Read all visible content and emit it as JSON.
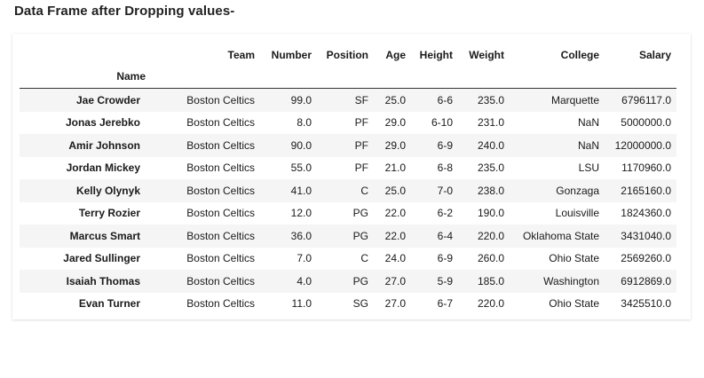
{
  "heading": "Data Frame after Dropping values-",
  "table": {
    "index_name": "Name",
    "columns": [
      "Team",
      "Number",
      "Position",
      "Age",
      "Height",
      "Weight",
      "College",
      "Salary"
    ],
    "rows": [
      {
        "name": "Jae Crowder",
        "team": "Boston Celtics",
        "number": "99.0",
        "position": "SF",
        "age": "25.0",
        "height": "6-6",
        "weight": "235.0",
        "college": "Marquette",
        "salary": "6796117.0"
      },
      {
        "name": "Jonas Jerebko",
        "team": "Boston Celtics",
        "number": "8.0",
        "position": "PF",
        "age": "29.0",
        "height": "6-10",
        "weight": "231.0",
        "college": "NaN",
        "salary": "5000000.0"
      },
      {
        "name": "Amir Johnson",
        "team": "Boston Celtics",
        "number": "90.0",
        "position": "PF",
        "age": "29.0",
        "height": "6-9",
        "weight": "240.0",
        "college": "NaN",
        "salary": "12000000.0"
      },
      {
        "name": "Jordan Mickey",
        "team": "Boston Celtics",
        "number": "55.0",
        "position": "PF",
        "age": "21.0",
        "height": "6-8",
        "weight": "235.0",
        "college": "LSU",
        "salary": "1170960.0"
      },
      {
        "name": "Kelly Olynyk",
        "team": "Boston Celtics",
        "number": "41.0",
        "position": "C",
        "age": "25.0",
        "height": "7-0",
        "weight": "238.0",
        "college": "Gonzaga",
        "salary": "2165160.0"
      },
      {
        "name": "Terry Rozier",
        "team": "Boston Celtics",
        "number": "12.0",
        "position": "PG",
        "age": "22.0",
        "height": "6-2",
        "weight": "190.0",
        "college": "Louisville",
        "salary": "1824360.0"
      },
      {
        "name": "Marcus Smart",
        "team": "Boston Celtics",
        "number": "36.0",
        "position": "PG",
        "age": "22.0",
        "height": "6-4",
        "weight": "220.0",
        "college": "Oklahoma State",
        "salary": "3431040.0"
      },
      {
        "name": "Jared Sullinger",
        "team": "Boston Celtics",
        "number": "7.0",
        "position": "C",
        "age": "24.0",
        "height": "6-9",
        "weight": "260.0",
        "college": "Ohio State",
        "salary": "2569260.0"
      },
      {
        "name": "Isaiah Thomas",
        "team": "Boston Celtics",
        "number": "4.0",
        "position": "PG",
        "age": "27.0",
        "height": "5-9",
        "weight": "185.0",
        "college": "Washington",
        "salary": "6912869.0"
      },
      {
        "name": "Evan Turner",
        "team": "Boston Celtics",
        "number": "11.0",
        "position": "SG",
        "age": "27.0",
        "height": "6-7",
        "weight": "220.0",
        "college": "Ohio State",
        "salary": "3425510.0"
      }
    ]
  },
  "colors": {
    "stripe": "#f5f5f5",
    "header_rule": "#333333"
  }
}
